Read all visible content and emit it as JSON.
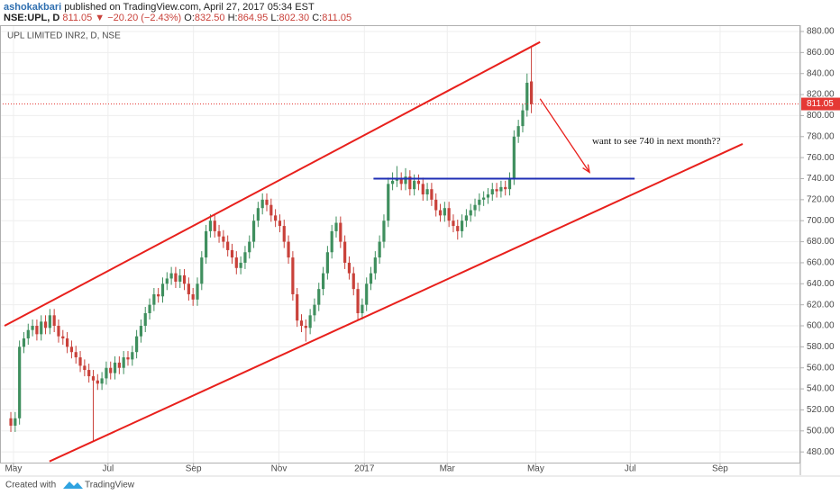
{
  "header": {
    "author": "ashokakbari",
    "published": "published on TradingView.com, April 27, 2017 05:34 EST",
    "symbol": "NSE:UPL, D",
    "last": "811.05",
    "change": "−20.20 (−2.43%)",
    "open_label": "O:",
    "open": "832.50",
    "high_label": "H:",
    "high": "864.95",
    "low_label": "L:",
    "low": "802.30",
    "close_label": "C:",
    "close": "811.05"
  },
  "footer": {
    "created": "Created with",
    "brand": "TradingView"
  },
  "chart_data": {
    "type": "candlestick",
    "title": "UPL LIMITED INR2, D, NSE",
    "up_color": "#3f8f5e",
    "down_color": "#c9413a",
    "grid": true,
    "xlim": [
      -2.5,
      182
    ],
    "xticks": [
      {
        "value": 0.6,
        "label": "May"
      },
      {
        "value": 22.4,
        "label": "Jul"
      },
      {
        "value": 42.1,
        "label": "Sep"
      },
      {
        "value": 61.8,
        "label": "Nov"
      },
      {
        "value": 81.5,
        "label": "2017"
      },
      {
        "value": 100.6,
        "label": "Mar"
      },
      {
        "value": 121,
        "label": "May"
      },
      {
        "value": 142.8,
        "label": "Jul"
      },
      {
        "value": 163.5,
        "label": "Sep"
      }
    ],
    "ylim": [
      469,
      886
    ],
    "yticks": [
      {
        "value": 480,
        "label": "480.00"
      },
      {
        "value": 500,
        "label": "500.00"
      },
      {
        "value": 520,
        "label": "520.00"
      },
      {
        "value": 540,
        "label": "540.00"
      },
      {
        "value": 560,
        "label": "560.00"
      },
      {
        "value": 580,
        "label": "580.00"
      },
      {
        "value": 600,
        "label": "600.00"
      },
      {
        "value": 620,
        "label": "620.00"
      },
      {
        "value": 640,
        "label": "640.00"
      },
      {
        "value": 660,
        "label": "660.00"
      },
      {
        "value": 680,
        "label": "680.00"
      },
      {
        "value": 700,
        "label": "700.00"
      },
      {
        "value": 720,
        "label": "720.00"
      },
      {
        "value": 740,
        "label": "740.00"
      },
      {
        "value": 760,
        "label": "760.00"
      },
      {
        "value": 780,
        "label": "780.00"
      },
      {
        "value": 800,
        "label": "800.00"
      },
      {
        "value": 820,
        "label": "820.00"
      },
      {
        "value": 840,
        "label": "840.00"
      },
      {
        "value": 860,
        "label": "860.00"
      },
      {
        "value": 880,
        "label": "880.00"
      }
    ],
    "last_price": {
      "value": 811.05,
      "label": "811.05",
      "color": "#e53935"
    },
    "open": [
      512,
      505,
      512,
      580,
      588,
      596,
      600,
      592,
      604,
      598,
      610,
      600,
      590,
      588,
      580,
      575,
      570,
      562,
      558,
      552,
      548,
      545,
      550,
      560,
      555,
      565,
      560,
      570,
      568,
      575,
      590,
      600,
      612,
      620,
      630,
      628,
      640,
      645,
      650,
      642,
      648,
      640,
      630,
      625,
      640,
      665,
      690,
      700,
      690,
      685,
      680,
      672,
      665,
      655,
      660,
      670,
      680,
      700,
      712,
      720,
      715,
      705,
      700,
      695,
      680,
      665,
      630,
      605,
      600,
      598,
      610,
      620,
      635,
      650,
      670,
      690,
      698,
      680,
      660,
      650,
      635,
      612,
      620,
      640,
      650,
      665,
      680,
      700,
      735,
      738,
      740,
      735,
      742,
      730,
      738,
      735,
      725,
      730,
      720,
      710,
      705,
      712,
      700,
      695,
      690,
      700,
      705,
      710,
      715,
      720,
      722,
      725,
      730,
      728,
      732,
      730,
      740,
      780,
      790,
      805,
      832.5
    ],
    "high": [
      518,
      518,
      586,
      594,
      602,
      606,
      606,
      610,
      610,
      616,
      616,
      606,
      596,
      594,
      586,
      581,
      576,
      568,
      564,
      558,
      554,
      556,
      566,
      566,
      571,
      571,
      576,
      576,
      581,
      596,
      606,
      618,
      626,
      636,
      636,
      646,
      651,
      656,
      656,
      654,
      654,
      646,
      636,
      646,
      671,
      696,
      706,
      706,
      696,
      691,
      686,
      678,
      671,
      666,
      676,
      686,
      706,
      718,
      726,
      726,
      721,
      711,
      706,
      701,
      686,
      671,
      636,
      611,
      606,
      616,
      626,
      641,
      656,
      676,
      696,
      704,
      704,
      686,
      666,
      656,
      641,
      626,
      646,
      656,
      671,
      686,
      706,
      741,
      746,
      752,
      746,
      750,
      748,
      744,
      744,
      741,
      736,
      736,
      726,
      716,
      718,
      718,
      706,
      701,
      706,
      711,
      716,
      721,
      726,
      728,
      731,
      736,
      736,
      738,
      738,
      746,
      786,
      796,
      811,
      840,
      864.95
    ],
    "low": [
      499,
      499,
      506,
      574,
      582,
      590,
      586,
      586,
      592,
      592,
      594,
      584,
      582,
      574,
      569,
      564,
      556,
      552,
      546,
      490,
      539,
      539,
      544,
      549,
      549,
      554,
      554,
      562,
      562,
      569,
      584,
      594,
      606,
      614,
      622,
      622,
      634,
      639,
      636,
      636,
      634,
      624,
      619,
      619,
      634,
      659,
      684,
      684,
      679,
      674,
      666,
      659,
      649,
      649,
      654,
      664,
      674,
      694,
      706,
      709,
      699,
      694,
      689,
      674,
      659,
      624,
      599,
      594,
      585,
      592,
      604,
      614,
      629,
      644,
      664,
      684,
      674,
      654,
      644,
      629,
      606,
      606,
      614,
      634,
      644,
      659,
      674,
      694,
      729,
      732,
      729,
      729,
      724,
      724,
      729,
      719,
      719,
      714,
      704,
      699,
      699,
      694,
      689,
      682,
      684,
      694,
      699,
      704,
      709,
      714,
      716,
      719,
      722,
      722,
      724,
      724,
      734,
      774,
      784,
      799,
      802.3
    ],
    "close": [
      505,
      512,
      580,
      588,
      596,
      600,
      592,
      604,
      598,
      610,
      600,
      590,
      588,
      580,
      575,
      570,
      562,
      558,
      552,
      548,
      545,
      550,
      560,
      555,
      565,
      560,
      570,
      568,
      575,
      590,
      600,
      612,
      620,
      630,
      628,
      640,
      645,
      650,
      642,
      648,
      640,
      630,
      625,
      640,
      665,
      690,
      700,
      690,
      685,
      680,
      672,
      665,
      655,
      660,
      670,
      680,
      700,
      712,
      720,
      715,
      705,
      700,
      695,
      680,
      665,
      630,
      605,
      600,
      598,
      610,
      620,
      635,
      650,
      670,
      690,
      698,
      680,
      660,
      650,
      635,
      612,
      620,
      640,
      650,
      665,
      680,
      700,
      735,
      738,
      740,
      735,
      742,
      730,
      738,
      735,
      725,
      730,
      720,
      710,
      705,
      712,
      700,
      695,
      690,
      700,
      705,
      710,
      715,
      720,
      722,
      725,
      730,
      728,
      732,
      730,
      740,
      780,
      790,
      805,
      831.25,
      811.05
    ],
    "drawings": [
      {
        "type": "line",
        "color": "#e8201c",
        "x": [
          -1.45,
          122
        ],
        "y": [
          600,
          870
        ]
      },
      {
        "type": "line",
        "color": "#e8201c",
        "x": [
          8.9,
          168.7
        ],
        "y": [
          471,
          773
        ]
      },
      {
        "type": "line",
        "color": "#1f2fb5",
        "x": [
          83.6,
          143.8
        ],
        "y": [
          740,
          740
        ]
      },
      {
        "type": "arrow",
        "color": "#e8201c",
        "x": [
          122,
          133.4
        ],
        "y": [
          816,
          746
        ]
      },
      {
        "type": "text",
        "text": "want to see 740 in next month??",
        "x": [
          134
        ],
        "y": [
          775
        ]
      }
    ]
  }
}
